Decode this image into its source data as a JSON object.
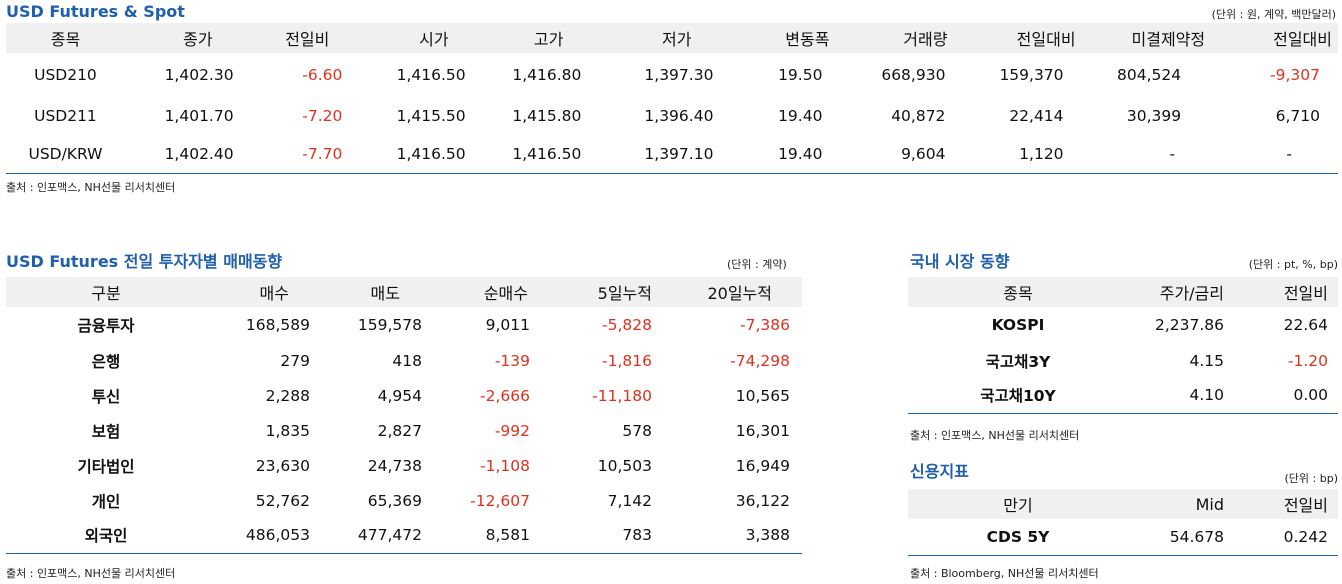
{
  "futures_spot": {
    "title": "USD Futures & Spot",
    "unit": "(단위 : 원, 계약, 백만달러)",
    "headers": [
      "종목",
      "종가",
      "전일비",
      "시가",
      "고가",
      "저가",
      "변동폭",
      "거래량",
      "전일대비",
      "미결제약정",
      "전일대비"
    ],
    "rows": [
      [
        "USD210",
        "1,402.30",
        "-6.60",
        "1,416.50",
        "1,416.80",
        "1,397.30",
        "19.50",
        "668,930",
        "159,370",
        "804,524",
        "-9,307"
      ],
      [
        "USD211",
        "1,401.70",
        "-7.20",
        "1,415.50",
        "1,415.80",
        "1,396.40",
        "19.40",
        "40,872",
        "22,414",
        "30,399",
        "6,710"
      ],
      [
        "USD/KRW",
        "1,402.40",
        "-7.70",
        "1,416.50",
        "1,416.50",
        "1,397.10",
        "19.40",
        "9,604",
        "1,120",
        "-",
        "-"
      ]
    ],
    "source": "출처 : 인포맥스, NH선물 리서치센터"
  },
  "investor": {
    "title": "USD Futures 전일 투자자별 매매동향",
    "unit": "(단위 : 계약)",
    "headers": [
      "구분",
      "매수",
      "매도",
      "순매수",
      "5일누적",
      "20일누적"
    ],
    "rows": [
      [
        "금융투자",
        "168,589",
        "159,578",
        "9,011",
        "-5,828",
        "-7,386"
      ],
      [
        "은행",
        "279",
        "418",
        "-139",
        "-1,816",
        "-74,298"
      ],
      [
        "투신",
        "2,288",
        "4,954",
        "-2,666",
        "-11,180",
        "10,565"
      ],
      [
        "보험",
        "1,835",
        "2,827",
        "-992",
        "578",
        "16,301"
      ],
      [
        "기타법인",
        "23,630",
        "24,738",
        "-1,108",
        "10,503",
        "16,949"
      ],
      [
        "개인",
        "52,762",
        "65,369",
        "-12,607",
        "7,142",
        "36,122"
      ],
      [
        "외국인",
        "486,053",
        "477,472",
        "8,581",
        "783",
        "3,388"
      ]
    ],
    "source": "출처 : 인포맥스, NH선물 리서치센터"
  },
  "domestic": {
    "title": "국내 시장 동향",
    "unit": "(단위 : pt, %, bp)",
    "headers": [
      "종목",
      "주가/금리",
      "전일비"
    ],
    "rows": [
      [
        "KOSPI",
        "2,237.86",
        "22.64"
      ],
      [
        "국고채3Y",
        "4.15",
        "-1.20"
      ],
      [
        "국고채10Y",
        "4.10",
        "0.00"
      ]
    ],
    "source": "출처 : 인포맥스, NH선물 리서치센터"
  },
  "credit": {
    "title": "신용지표",
    "unit": "(단위 : bp)",
    "headers": [
      "만기",
      "Mid",
      "전일비"
    ],
    "rows": [
      [
        "CDS 5Y",
        "54.678",
        "0.242"
      ]
    ],
    "source": "출처 : Bloomberg, NH선물 리서치센터"
  },
  "colors": {
    "title": "#1f5fae",
    "negative": "#e0301e",
    "header_bg": "#f0f0f0",
    "rule": "#1f5fae"
  }
}
